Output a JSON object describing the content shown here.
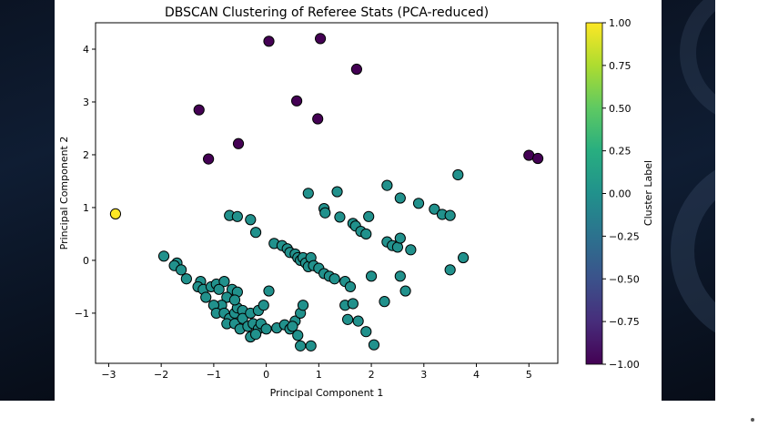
{
  "chart_data": {
    "type": "scatter",
    "title": "DBSCAN Clustering of Referee Stats (PCA-reduced)",
    "xlabel": "Principal Component 1",
    "ylabel": "Principal Component 2",
    "xlim": [
      -3.25,
      5.55
    ],
    "ylim": [
      -1.95,
      4.5
    ],
    "xticks": [
      "−3",
      "−2",
      "−1",
      "0",
      "1",
      "2",
      "3",
      "4",
      "5"
    ],
    "xtick_values": [
      -3,
      -2,
      -1,
      0,
      1,
      2,
      3,
      4,
      5
    ],
    "yticks": [
      "−1",
      "0",
      "1",
      "2",
      "3",
      "4"
    ],
    "ytick_values": [
      -1,
      0,
      1,
      2,
      3,
      4
    ],
    "grid": false,
    "colorbar": {
      "label": "Cluster Label",
      "min": -1.0,
      "max": 1.0,
      "ticks": [
        "1.00",
        "0.75",
        "0.50",
        "0.25",
        "0.00",
        "−0.25",
        "−0.50",
        "−0.75",
        "−1.00"
      ],
      "tick_values": [
        1.0,
        0.75,
        0.5,
        0.25,
        0.0,
        -0.25,
        -0.5,
        -0.75,
        -1.0
      ],
      "colormap": "viridis"
    },
    "colors": {
      "cluster_-1": "#440154",
      "cluster_0": "#21918c",
      "cluster_1": "#fde725"
    },
    "series": [
      {
        "label": -1,
        "points": [
          [
            0.05,
            4.15
          ],
          [
            1.03,
            4.2
          ],
          [
            1.72,
            3.62
          ],
          [
            0.58,
            3.02
          ],
          [
            0.98,
            2.68
          ],
          [
            -1.28,
            2.85
          ],
          [
            -0.53,
            2.21
          ],
          [
            -1.1,
            1.92
          ],
          [
            5.0,
            1.99
          ],
          [
            5.17,
            1.93
          ]
        ]
      },
      {
        "label": 1,
        "points": [
          [
            -2.87,
            0.88
          ]
        ]
      },
      {
        "label": 0,
        "points": [
          [
            -1.95,
            0.08
          ],
          [
            -1.7,
            -0.05
          ],
          [
            -1.75,
            -0.1
          ],
          [
            -1.62,
            -0.18
          ],
          [
            -1.52,
            -0.35
          ],
          [
            -1.25,
            -0.4
          ],
          [
            -1.3,
            -0.5
          ],
          [
            -1.2,
            -0.55
          ],
          [
            -1.05,
            -0.5
          ],
          [
            -1.15,
            -0.7
          ],
          [
            -0.95,
            -0.45
          ],
          [
            -0.8,
            -0.4
          ],
          [
            -0.9,
            -0.55
          ],
          [
            -0.65,
            -0.55
          ],
          [
            -0.75,
            -0.7
          ],
          [
            -0.55,
            -0.6
          ],
          [
            -0.85,
            -0.85
          ],
          [
            -1.0,
            -0.85
          ],
          [
            -0.95,
            -1.0
          ],
          [
            -0.8,
            -1.0
          ],
          [
            -0.7,
            -1.1
          ],
          [
            -0.6,
            -1.0
          ],
          [
            -0.55,
            -0.9
          ],
          [
            -0.45,
            -0.95
          ],
          [
            -0.75,
            -1.2
          ],
          [
            -0.6,
            -1.2
          ],
          [
            -0.45,
            -1.1
          ],
          [
            -0.5,
            -1.3
          ],
          [
            -0.35,
            -1.25
          ],
          [
            -0.3,
            -1.45
          ],
          [
            -0.25,
            -1.2
          ],
          [
            -0.15,
            -1.3
          ],
          [
            -0.2,
            -1.4
          ],
          [
            -0.1,
            -1.2
          ],
          [
            0.0,
            -1.3
          ],
          [
            -0.3,
            -1.0
          ],
          [
            -0.15,
            -0.95
          ],
          [
            -0.05,
            -0.85
          ],
          [
            0.05,
            -0.58
          ],
          [
            -0.6,
            -0.75
          ],
          [
            -0.7,
            0.85
          ],
          [
            -0.55,
            0.83
          ],
          [
            -0.3,
            0.77
          ],
          [
            -0.2,
            0.53
          ],
          [
            0.15,
            0.32
          ],
          [
            0.3,
            0.28
          ],
          [
            0.4,
            0.22
          ],
          [
            0.45,
            0.15
          ],
          [
            0.55,
            0.12
          ],
          [
            0.6,
            0.05
          ],
          [
            0.65,
            0.0
          ],
          [
            0.7,
            0.05
          ],
          [
            0.75,
            -0.05
          ],
          [
            0.8,
            -0.12
          ],
          [
            0.85,
            0.05
          ],
          [
            0.9,
            -0.1
          ],
          [
            1.0,
            -0.15
          ],
          [
            1.1,
            -0.25
          ],
          [
            1.2,
            -0.3
          ],
          [
            1.3,
            -0.35
          ],
          [
            0.2,
            -1.28
          ],
          [
            0.35,
            -1.22
          ],
          [
            0.45,
            -1.3
          ],
          [
            0.55,
            -1.15
          ],
          [
            0.65,
            -1.0
          ],
          [
            0.7,
            -0.85
          ],
          [
            0.5,
            -1.25
          ],
          [
            0.6,
            -1.42
          ],
          [
            0.65,
            -1.62
          ],
          [
            0.85,
            -1.62
          ],
          [
            0.8,
            1.27
          ],
          [
            1.35,
            1.3
          ],
          [
            1.1,
            0.98
          ],
          [
            1.12,
            0.9
          ],
          [
            1.4,
            0.82
          ],
          [
            1.65,
            0.7
          ],
          [
            1.7,
            0.65
          ],
          [
            1.8,
            0.55
          ],
          [
            1.9,
            0.5
          ],
          [
            1.95,
            0.83
          ],
          [
            2.3,
            0.35
          ],
          [
            2.4,
            0.28
          ],
          [
            2.5,
            0.25
          ],
          [
            2.55,
            0.42
          ],
          [
            2.75,
            0.2
          ],
          [
            1.5,
            -0.4
          ],
          [
            1.6,
            -0.5
          ],
          [
            1.5,
            -0.85
          ],
          [
            1.65,
            -0.82
          ],
          [
            1.55,
            -1.12
          ],
          [
            1.75,
            -1.15
          ],
          [
            1.9,
            -1.35
          ],
          [
            2.05,
            -1.6
          ],
          [
            2.25,
            -0.78
          ],
          [
            2.0,
            -0.3
          ],
          [
            2.55,
            -0.3
          ],
          [
            2.65,
            -0.58
          ],
          [
            2.3,
            1.42
          ],
          [
            2.55,
            1.18
          ],
          [
            2.9,
            1.08
          ],
          [
            3.2,
            0.97
          ],
          [
            3.35,
            0.87
          ],
          [
            3.5,
            0.85
          ],
          [
            3.65,
            1.62
          ],
          [
            3.5,
            -0.18
          ],
          [
            3.75,
            0.05
          ]
        ]
      }
    ]
  }
}
